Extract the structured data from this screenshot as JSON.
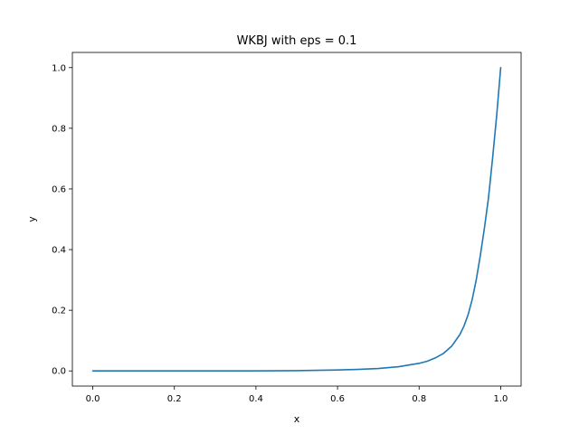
{
  "chart_data": {
    "type": "line",
    "title": "WKBJ with eps = 0.1",
    "xlabel": "x",
    "ylabel": "y",
    "xlim": [
      -0.05,
      1.05
    ],
    "ylim": [
      -0.05,
      1.05
    ],
    "x_ticks": [
      0.0,
      0.2,
      0.4,
      0.6,
      0.8,
      1.0
    ],
    "x_tick_labels": [
      "0.0",
      "0.2",
      "0.4",
      "0.6",
      "0.8",
      "1.0"
    ],
    "y_ticks": [
      0.0,
      0.2,
      0.4,
      0.6,
      0.8,
      1.0
    ],
    "y_tick_labels": [
      "0.0",
      "0.2",
      "0.4",
      "0.6",
      "0.8",
      "1.0"
    ],
    "grid": false,
    "series": [
      {
        "color": "#1f77b4",
        "x": [
          0.0,
          0.1,
          0.2,
          0.3,
          0.4,
          0.5,
          0.55,
          0.6,
          0.65,
          0.7,
          0.75,
          0.8,
          0.82,
          0.84,
          0.86,
          0.88,
          0.9,
          0.91,
          0.92,
          0.93,
          0.94,
          0.95,
          0.96,
          0.97,
          0.98,
          0.99,
          1.0
        ],
        "y": [
          0.0,
          0.0,
          0.0,
          0.0,
          0.0,
          0.001,
          0.002,
          0.003,
          0.005,
          0.008,
          0.014,
          0.025,
          0.032,
          0.043,
          0.058,
          0.082,
          0.12,
          0.148,
          0.185,
          0.235,
          0.3,
          0.38,
          0.47,
          0.57,
          0.7,
          0.84,
          1.0
        ]
      }
    ]
  }
}
